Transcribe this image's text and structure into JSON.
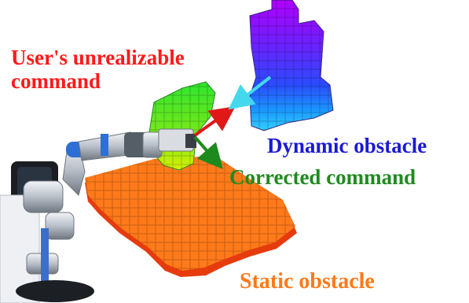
{
  "labels": {
    "user_command_line1": "User's unrealizable",
    "user_command_line2": "command",
    "dynamic_obstacle": "Dynamic obstacle",
    "corrected_command": "Corrected command",
    "static_obstacle": "Static obstacle"
  },
  "colors": {
    "user_command": "#ff1a1a",
    "dynamic_obstacle": "#1a1ad4",
    "corrected_command": "#1f8a1f",
    "static_obstacle": "#ff7a1a",
    "arrow_user": "#e01818",
    "arrow_corrected": "#1c8a1c",
    "arrow_dynamic": "#44d8ee"
  },
  "icons": [
    "robot-arm-icon",
    "gripper-icon",
    "voxel-obstacle-icon",
    "arrow-icon"
  ]
}
